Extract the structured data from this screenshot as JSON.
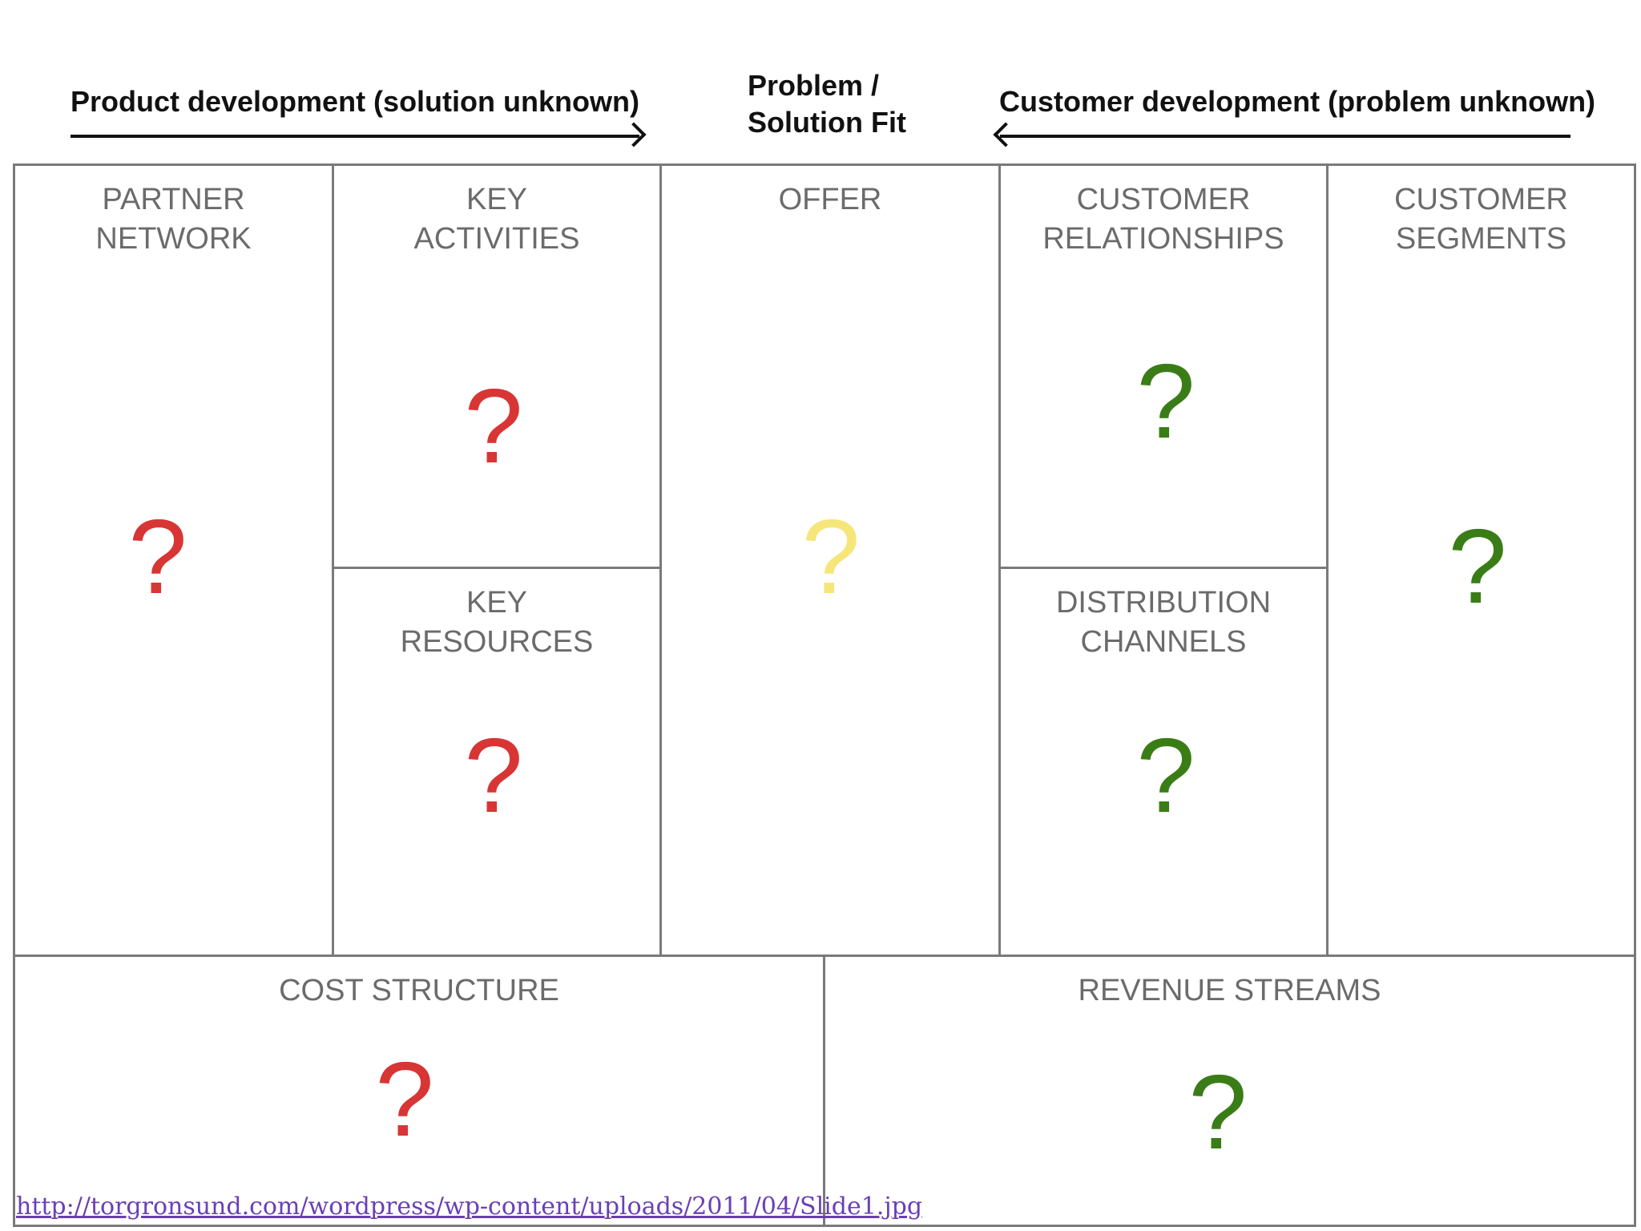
{
  "header": {
    "left_text": "Product development (solution unknown)",
    "center_line1": "Problem /",
    "center_line2": "Solution Fit",
    "right_text": "Customer development (problem unknown)"
  },
  "canvas": {
    "partner_network": {
      "label_line1": "PARTNER",
      "label_line2": "NETWORK",
      "mark": "?",
      "mark_color": "#d83535"
    },
    "key_activities": {
      "label_line1": "KEY",
      "label_line2": "ACTIVITIES",
      "mark": "?",
      "mark_color": "#d83535"
    },
    "key_resources": {
      "label_line1": "KEY",
      "label_line2": "RESOURCES",
      "mark": "?",
      "mark_color": "#d83535"
    },
    "offer": {
      "label_line1": "OFFER",
      "mark": "?",
      "mark_color": "#f6e67a"
    },
    "customer_relationships": {
      "label_line1": "CUSTOMER",
      "label_line2": "RELATIONSHIPS",
      "mark": "?",
      "mark_color": "#3a7d17"
    },
    "distribution_channels": {
      "label_line1": "DISTRIBUTION",
      "label_line2": "CHANNELS",
      "mark": "?",
      "mark_color": "#3a7d17"
    },
    "customer_segments": {
      "label_line1": "CUSTOMER",
      "label_line2": "SEGMENTS",
      "mark": "?",
      "mark_color": "#3a7d17"
    },
    "cost_structure": {
      "label_line1": "COST STRUCTURE",
      "mark": "?",
      "mark_color": "#d83535"
    },
    "revenue_streams": {
      "label_line1": "REVENUE STREAMS",
      "mark": "?",
      "mark_color": "#3a7d17"
    }
  },
  "source_link": "http://torgronsund.com/wordpress/wp-content/uploads/2011/04/Slide1.jpg"
}
